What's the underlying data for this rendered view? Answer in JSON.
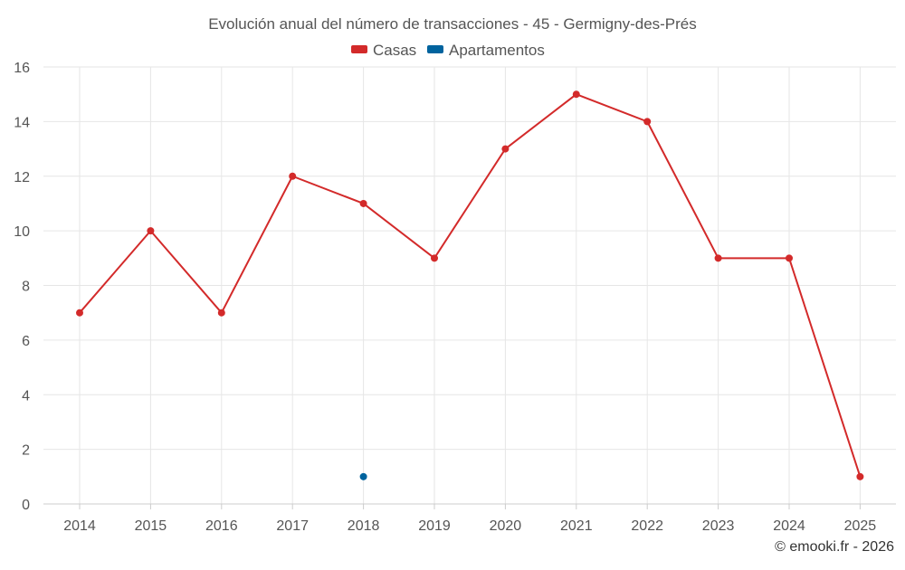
{
  "chart_data": {
    "type": "line",
    "title": "Evolución anual del número de transacciones - 45 - Germigny-des-Prés",
    "categories": [
      "2014",
      "2015",
      "2016",
      "2017",
      "2018",
      "2019",
      "2020",
      "2021",
      "2022",
      "2023",
      "2024",
      "2025"
    ],
    "series": [
      {
        "name": "Casas",
        "color": "#d32a2a",
        "values": [
          7,
          10,
          7,
          12,
          11,
          9,
          13,
          15,
          14,
          9,
          9,
          1
        ]
      },
      {
        "name": "Apartamentos",
        "color": "#00639e",
        "values": [
          null,
          null,
          null,
          null,
          1,
          null,
          null,
          null,
          null,
          null,
          null,
          null
        ]
      }
    ],
    "ylim": [
      0,
      16
    ],
    "yticks": [
      "0",
      "2",
      "4",
      "6",
      "8",
      "10",
      "12",
      "14",
      "16"
    ],
    "xlabel": "",
    "ylabel": "",
    "grid": true,
    "legend": "top-center"
  },
  "credit": "© emooki.fr - 2026"
}
